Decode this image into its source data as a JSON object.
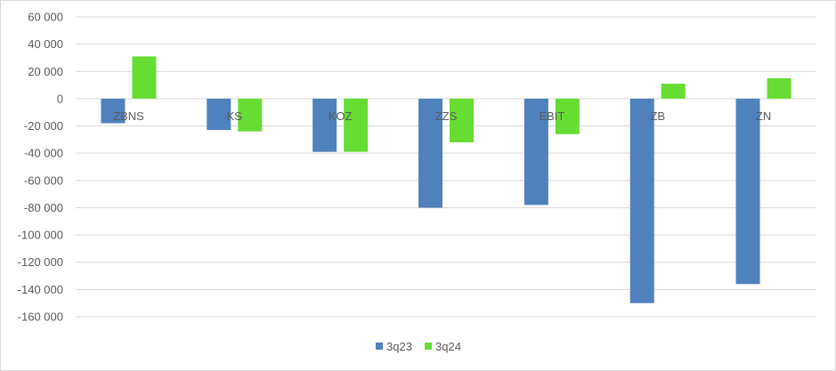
{
  "chart_data": {
    "type": "bar",
    "categories": [
      "ZBNS",
      "KS",
      "KOZ",
      "ZZS",
      "EBIT",
      "ZB",
      "ZN"
    ],
    "series": [
      {
        "name": "3q23",
        "color": "#4f81bd",
        "values": [
          -18000,
          -23000,
          -39000,
          -80000,
          -78000,
          -150000,
          -136000
        ]
      },
      {
        "name": "3q24",
        "color": "#66dd33",
        "values": [
          31000,
          -24000,
          -39000,
          -32000,
          -26000,
          11000,
          15000
        ]
      }
    ],
    "ylim": [
      -160000,
      60000
    ],
    "yticks": [
      60000,
      40000,
      20000,
      0,
      -20000,
      -40000,
      -60000,
      -80000,
      -100000,
      -120000,
      -140000,
      -160000
    ],
    "ytick_labels": [
      "60 000",
      "40 000",
      "20 000",
      "0",
      "-20 000",
      "-40 000",
      "-60 000",
      "-80 000",
      "-100 000",
      "-120 000",
      "-140 000",
      "-160 000"
    ],
    "grid": true,
    "legend_position": "bottom"
  }
}
